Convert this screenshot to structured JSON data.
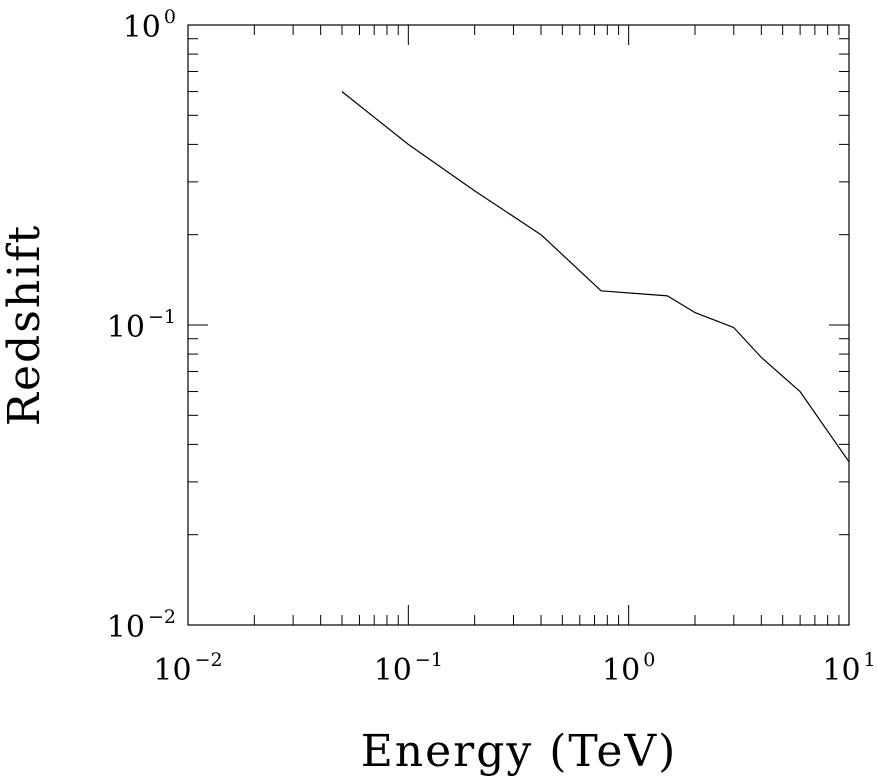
{
  "chart_data": {
    "type": "line",
    "xlabel": "Energy (TeV)",
    "ylabel": "Redshift",
    "xscale": "log",
    "yscale": "log",
    "xlim": [
      0.01,
      10
    ],
    "ylim": [
      0.01,
      1
    ],
    "grid": false,
    "legend": "none",
    "x_ticks": [
      {
        "base": "10",
        "exp": "−2",
        "value": 0.01
      },
      {
        "base": "10",
        "exp": "−1",
        "value": 0.1
      },
      {
        "base": "10",
        "exp": "0",
        "value": 1
      },
      {
        "base": "10",
        "exp": "1",
        "value": 10
      }
    ],
    "y_ticks": [
      {
        "base": "10",
        "exp": "−2",
        "value": 0.01
      },
      {
        "base": "10",
        "exp": "−1",
        "value": 0.1
      },
      {
        "base": "10",
        "exp": "0",
        "value": 1
      }
    ],
    "series": [
      {
        "points": [
          {
            "x": 0.05,
            "y": 0.6
          },
          {
            "x": 0.1,
            "y": 0.4
          },
          {
            "x": 0.2,
            "y": 0.28
          },
          {
            "x": 0.4,
            "y": 0.2
          },
          {
            "x": 0.75,
            "y": 0.13
          },
          {
            "x": 1.5,
            "y": 0.125
          },
          {
            "x": 2.0,
            "y": 0.11
          },
          {
            "x": 3.0,
            "y": 0.098
          },
          {
            "x": 4.0,
            "y": 0.078
          },
          {
            "x": 6.0,
            "y": 0.06
          },
          {
            "x": 10.0,
            "y": 0.035
          }
        ]
      }
    ]
  },
  "colors": {
    "background": "#ffffff",
    "line": "#000000",
    "frame": "#000000"
  }
}
